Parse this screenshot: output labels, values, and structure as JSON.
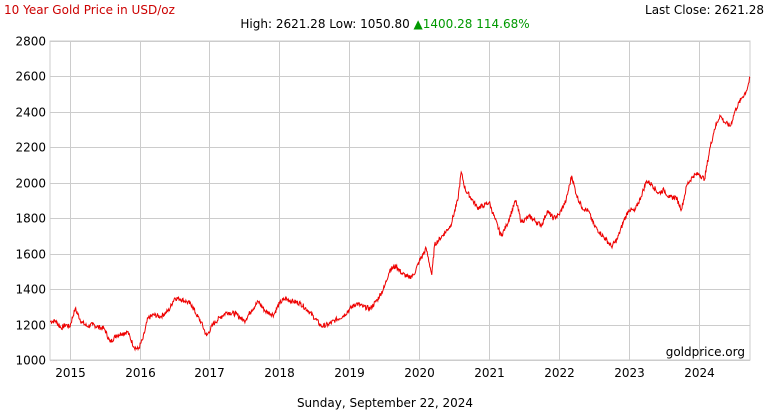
{
  "header": {
    "title": "10 Year Gold Price in USD/oz",
    "last_close_label": "Last Close: 2621.28",
    "stats_prefix": "High: 2621.28 Low: 1050.80 ",
    "change_arrow": "▲",
    "change_text": "1400.28 114.68%"
  },
  "footer": {
    "date": "Sunday, September 22, 2024",
    "source": "goldprice.org"
  },
  "colors": {
    "line": "#ee0000",
    "title": "#cc0000",
    "up": "#009900",
    "grid": "#cccccc"
  },
  "chart_data": {
    "type": "line",
    "title": "10 Year Gold Price in USD/oz",
    "xlabel": "",
    "ylabel": "",
    "ylim": [
      1000,
      2800
    ],
    "xlim": [
      2014.72,
      2024.73
    ],
    "y_ticks": [
      1000,
      1200,
      1400,
      1600,
      1800,
      2000,
      2200,
      2400,
      2600,
      2800
    ],
    "x_ticks": [
      "2015",
      "2016",
      "2017",
      "2018",
      "2019",
      "2020",
      "2021",
      "2022",
      "2023",
      "2024"
    ],
    "grid": true,
    "legend": "none",
    "series": [
      {
        "values": [
          [
            2014.72,
            1218
          ],
          [
            2014.8,
            1220
          ],
          [
            2014.88,
            1180
          ],
          [
            2014.95,
            1200
          ],
          [
            2015.0,
            1185
          ],
          [
            2015.08,
            1290
          ],
          [
            2015.17,
            1215
          ],
          [
            2015.25,
            1190
          ],
          [
            2015.33,
            1200
          ],
          [
            2015.42,
            1185
          ],
          [
            2015.5,
            1175
          ],
          [
            2015.58,
            1100
          ],
          [
            2015.67,
            1140
          ],
          [
            2015.75,
            1150
          ],
          [
            2015.83,
            1160
          ],
          [
            2015.92,
            1075
          ],
          [
            2015.98,
            1060
          ],
          [
            2016.05,
            1120
          ],
          [
            2016.12,
            1235
          ],
          [
            2016.2,
            1255
          ],
          [
            2016.3,
            1245
          ],
          [
            2016.42,
            1280
          ],
          [
            2016.5,
            1350
          ],
          [
            2016.58,
            1345
          ],
          [
            2016.67,
            1330
          ],
          [
            2016.75,
            1310
          ],
          [
            2016.8,
            1265
          ],
          [
            2016.88,
            1215
          ],
          [
            2016.96,
            1135
          ],
          [
            2017.05,
            1200
          ],
          [
            2017.15,
            1240
          ],
          [
            2017.25,
            1270
          ],
          [
            2017.38,
            1260
          ],
          [
            2017.5,
            1220
          ],
          [
            2017.6,
            1280
          ],
          [
            2017.7,
            1330
          ],
          [
            2017.8,
            1275
          ],
          [
            2017.92,
            1255
          ],
          [
            2018.0,
            1320
          ],
          [
            2018.08,
            1345
          ],
          [
            2018.2,
            1330
          ],
          [
            2018.3,
            1320
          ],
          [
            2018.42,
            1275
          ],
          [
            2018.52,
            1230
          ],
          [
            2018.6,
            1190
          ],
          [
            2018.7,
            1200
          ],
          [
            2018.8,
            1225
          ],
          [
            2018.92,
            1250
          ],
          [
            2019.0,
            1285
          ],
          [
            2019.1,
            1320
          ],
          [
            2019.2,
            1300
          ],
          [
            2019.3,
            1290
          ],
          [
            2019.4,
            1340
          ],
          [
            2019.5,
            1410
          ],
          [
            2019.58,
            1510
          ],
          [
            2019.67,
            1530
          ],
          [
            2019.75,
            1490
          ],
          [
            2019.85,
            1465
          ],
          [
            2019.92,
            1480
          ],
          [
            2020.0,
            1555
          ],
          [
            2020.1,
            1630
          ],
          [
            2020.18,
            1480
          ],
          [
            2020.22,
            1650
          ],
          [
            2020.35,
            1710
          ],
          [
            2020.45,
            1760
          ],
          [
            2020.55,
            1900
          ],
          [
            2020.6,
            2060
          ],
          [
            2020.66,
            1960
          ],
          [
            2020.75,
            1910
          ],
          [
            2020.83,
            1860
          ],
          [
            2020.92,
            1870
          ],
          [
            2021.0,
            1890
          ],
          [
            2021.08,
            1800
          ],
          [
            2021.17,
            1700
          ],
          [
            2021.25,
            1760
          ],
          [
            2021.38,
            1900
          ],
          [
            2021.46,
            1780
          ],
          [
            2021.58,
            1810
          ],
          [
            2021.67,
            1780
          ],
          [
            2021.75,
            1760
          ],
          [
            2021.83,
            1840
          ],
          [
            2021.92,
            1800
          ],
          [
            2022.0,
            1820
          ],
          [
            2022.1,
            1900
          ],
          [
            2022.18,
            2040
          ],
          [
            2022.25,
            1930
          ],
          [
            2022.33,
            1860
          ],
          [
            2022.42,
            1840
          ],
          [
            2022.5,
            1760
          ],
          [
            2022.58,
            1720
          ],
          [
            2022.67,
            1680
          ],
          [
            2022.75,
            1640
          ],
          [
            2022.83,
            1680
          ],
          [
            2022.92,
            1780
          ],
          [
            2023.0,
            1850
          ],
          [
            2023.08,
            1840
          ],
          [
            2023.17,
            1920
          ],
          [
            2023.25,
            2010
          ],
          [
            2023.33,
            1990
          ],
          [
            2023.42,
            1940
          ],
          [
            2023.5,
            1960
          ],
          [
            2023.58,
            1915
          ],
          [
            2023.67,
            1920
          ],
          [
            2023.75,
            1850
          ],
          [
            2023.83,
            1990
          ],
          [
            2023.92,
            2040
          ],
          [
            2024.0,
            2050
          ],
          [
            2024.08,
            2020
          ],
          [
            2024.15,
            2180
          ],
          [
            2024.22,
            2300
          ],
          [
            2024.3,
            2380
          ],
          [
            2024.37,
            2340
          ],
          [
            2024.45,
            2320
          ],
          [
            2024.52,
            2410
          ],
          [
            2024.6,
            2470
          ],
          [
            2024.68,
            2520
          ],
          [
            2024.73,
            2590
          ]
        ]
      }
    ]
  }
}
